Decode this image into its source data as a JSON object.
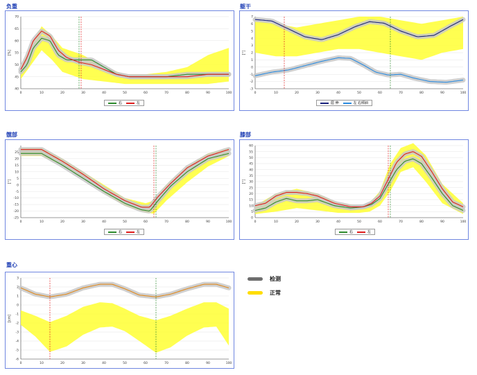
{
  "colors": {
    "band": "#ffff33",
    "measured": "#c8c8c8",
    "right": "#2e8b2e",
    "left": "#e01e1e",
    "trunk_main": "#1a237e",
    "trunk_side": "#2b8ce0",
    "cog": "#e08a1e",
    "frame": "#6f86e0",
    "title": "#1f3fb5"
  },
  "legend": {
    "measured": "检测",
    "normal": "正常"
  },
  "charts": [
    {
      "id": "load",
      "title": "负重",
      "ylabel": "[%]",
      "ylim": [
        40,
        70
      ],
      "yticks": [
        40,
        45,
        50,
        55,
        60,
        65,
        70
      ],
      "xlim": [
        0,
        100
      ],
      "xticks": [
        0,
        10,
        20,
        30,
        40,
        50,
        60,
        70,
        80,
        90,
        100
      ],
      "legend": [
        "右",
        "左"
      ],
      "markers": [
        {
          "x": 28,
          "color": "#2e8b2e"
        },
        {
          "x": 29,
          "color": "#e01e1e"
        }
      ],
      "band": {
        "x": [
          0,
          5,
          10,
          15,
          20,
          30,
          40,
          50,
          60,
          70,
          80,
          90,
          100
        ],
        "upper": [
          49,
          58,
          66,
          62,
          57,
          54,
          49,
          46,
          46,
          47,
          49,
          54,
          57
        ],
        "lower": [
          44,
          50,
          56,
          52,
          47,
          44,
          43,
          42,
          42,
          42,
          42,
          42,
          43
        ]
      },
      "series": [
        {
          "name": "右",
          "color": "#2e8b2e",
          "grey": 4,
          "x": [
            0,
            3,
            6,
            10,
            14,
            18,
            22,
            28,
            34,
            40,
            46,
            52,
            60,
            70,
            80,
            90,
            100
          ],
          "y": [
            47,
            50,
            57,
            61,
            60,
            54,
            52,
            52,
            52,
            49,
            46,
            45,
            45,
            45,
            46,
            46,
            46
          ]
        },
        {
          "name": "左",
          "color": "#e01e1e",
          "grey": 0,
          "x": [
            0,
            3,
            6,
            10,
            14,
            18,
            22,
            28,
            34,
            40,
            46,
            52,
            60,
            70,
            80,
            90,
            100
          ],
          "y": [
            48,
            53,
            60,
            64,
            62,
            56,
            53,
            51,
            50,
            48,
            46,
            45,
            45,
            45,
            45,
            46,
            46
          ]
        }
      ]
    },
    {
      "id": "trunk",
      "title": "躯干",
      "ylabel": "[°]",
      "ylim": [
        -3,
        7
      ],
      "yticks": [
        -3,
        -2,
        -1,
        0,
        1,
        2,
        3,
        4,
        5,
        6,
        7
      ],
      "xlim": [
        0,
        100
      ],
      "xticks": [
        0,
        10,
        20,
        30,
        40,
        50,
        60,
        70,
        80,
        90,
        100
      ],
      "legend": [
        "屈 伸",
        "左 右倾斜"
      ],
      "markers": [
        {
          "x": 14,
          "color": "#e01e1e"
        },
        {
          "x": 65,
          "color": "#2e8b2e"
        }
      ],
      "band": {
        "x": [
          0,
          10,
          20,
          30,
          40,
          50,
          60,
          70,
          80,
          90,
          100
        ],
        "upper": [
          6.5,
          6,
          5.5,
          6,
          6.5,
          7,
          7,
          6.5,
          6,
          6.5,
          7
        ],
        "lower": [
          2,
          1.5,
          1.5,
          2,
          2.5,
          2.5,
          2,
          1.5,
          1,
          2,
          2.5
        ]
      },
      "series": [
        {
          "name": "屈 伸",
          "color": "#1a237e",
          "grey": 1,
          "x": [
            0,
            8,
            16,
            24,
            32,
            40,
            48,
            55,
            62,
            70,
            78,
            86,
            94,
            100
          ],
          "y": [
            6.6,
            6.4,
            5.3,
            4.2,
            3.8,
            4.5,
            5.6,
            6.3,
            6.1,
            5.0,
            4.2,
            4.4,
            5.7,
            6.6
          ]
        },
        {
          "name": "左 右倾斜",
          "color": "#2b8ce0",
          "grey": 1,
          "x": [
            0,
            8,
            16,
            24,
            32,
            40,
            46,
            52,
            58,
            64,
            70,
            76,
            84,
            92,
            100
          ],
          "y": [
            -1.2,
            -0.7,
            -0.4,
            0.2,
            0.8,
            1.3,
            1.2,
            0.3,
            -0.7,
            -1.1,
            -1.0,
            -1.5,
            -2.0,
            -2.1,
            -1.8
          ]
        }
      ]
    },
    {
      "id": "hip",
      "title": "髋部",
      "ylabel": "[°]",
      "ylim": [
        -25,
        30
      ],
      "yticks": [
        -25,
        -20,
        -15,
        -10,
        -5,
        0,
        5,
        10,
        15,
        20,
        25
      ],
      "xlim": [
        0,
        100
      ],
      "xticks": [
        0,
        10,
        20,
        30,
        40,
        50,
        60,
        70,
        80,
        90,
        100
      ],
      "legend": [
        "右",
        "左"
      ],
      "markers": [
        {
          "x": 64,
          "color": "#e01e1e"
        },
        {
          "x": 65,
          "color": "#2e8b2e"
        }
      ],
      "band": {
        "x": [
          0,
          10,
          20,
          30,
          40,
          50,
          60,
          64,
          70,
          80,
          90,
          100
        ],
        "upper": [
          28,
          28,
          20,
          10,
          0,
          -10,
          -14,
          -12,
          0,
          14,
          24,
          28
        ],
        "lower": [
          22,
          22,
          15,
          5,
          -6,
          -16,
          -21,
          -22,
          -12,
          2,
          14,
          22
        ]
      },
      "series": [
        {
          "name": "右",
          "color": "#2e8b2e",
          "grey": 4,
          "x": [
            0,
            10,
            20,
            30,
            40,
            50,
            58,
            62,
            66,
            72,
            80,
            90,
            100
          ],
          "y": [
            24,
            24,
            15,
            5,
            -5,
            -14,
            -19,
            -20,
            -12,
            -1,
            10,
            20,
            24
          ]
        },
        {
          "name": "左",
          "color": "#e01e1e",
          "grey": 0,
          "x": [
            0,
            10,
            20,
            30,
            40,
            50,
            58,
            62,
            66,
            72,
            80,
            90,
            100
          ],
          "y": [
            27,
            27,
            18,
            8,
            -3,
            -12,
            -17,
            -17,
            -9,
            1,
            13,
            22,
            27
          ]
        }
      ]
    },
    {
      "id": "knee",
      "title": "膝部",
      "ylabel": "[°]",
      "ylim": [
        0,
        60
      ],
      "yticks": [
        0,
        5,
        10,
        15,
        20,
        25,
        30,
        35,
        40,
        45,
        50,
        55,
        60
      ],
      "xlim": [
        0,
        100
      ],
      "xticks": [
        0,
        10,
        20,
        30,
        40,
        50,
        60,
        70,
        80,
        90,
        100
      ],
      "legend": [
        "右",
        "左"
      ],
      "markers": [
        {
          "x": 64,
          "color": "#e01e1e"
        },
        {
          "x": 65,
          "color": "#2e8b2e"
        }
      ],
      "band": {
        "x": [
          0,
          10,
          20,
          30,
          40,
          50,
          55,
          60,
          65,
          70,
          76,
          82,
          90,
          100
        ],
        "upper": [
          10,
          20,
          24,
          20,
          12,
          10,
          12,
          22,
          45,
          58,
          62,
          52,
          28,
          12
        ],
        "lower": [
          3,
          5,
          8,
          6,
          4,
          4,
          5,
          10,
          22,
          38,
          42,
          30,
          12,
          3
        ]
      },
      "series": [
        {
          "name": "右",
          "color": "#2e8b2e",
          "grey": 4,
          "x": [
            0,
            5,
            10,
            15,
            20,
            25,
            30,
            38,
            46,
            52,
            56,
            60,
            64,
            68,
            72,
            76,
            80,
            85,
            90,
            95,
            100
          ],
          "y": [
            6,
            8,
            13,
            16,
            14,
            14,
            15,
            10,
            8,
            9,
            11,
            16,
            28,
            40,
            47,
            49,
            45,
            33,
            20,
            10,
            6
          ]
        },
        {
          "name": "左",
          "color": "#e01e1e",
          "grey": 0,
          "x": [
            0,
            5,
            10,
            15,
            20,
            25,
            30,
            38,
            46,
            52,
            56,
            60,
            64,
            68,
            72,
            76,
            80,
            85,
            90,
            95,
            100
          ],
          "y": [
            10,
            12,
            18,
            21,
            21,
            20,
            18,
            12,
            9,
            9,
            12,
            18,
            32,
            46,
            53,
            55,
            51,
            38,
            24,
            13,
            9
          ]
        }
      ]
    },
    {
      "id": "cog",
      "title": "重心",
      "ylabel": "[cm]",
      "ylim": [
        -6,
        3
      ],
      "yticks": [
        -6,
        -5,
        -4,
        -3,
        -2,
        -1,
        0,
        1,
        2,
        3
      ],
      "xlim": [
        0,
        100
      ],
      "xticks": [
        0,
        10,
        20,
        30,
        40,
        50,
        60,
        70,
        80,
        90,
        100
      ],
      "legend": [],
      "markers": [
        {
          "x": 14,
          "color": "#e01e1e"
        },
        {
          "x": 65,
          "color": "#2e8b2e"
        }
      ],
      "band": {
        "x": [
          0,
          7,
          14,
          22,
          30,
          38,
          44,
          50,
          57,
          65,
          72,
          80,
          88,
          94,
          100
        ],
        "upper": [
          -0.6,
          -1.2,
          -1.9,
          -1.2,
          -0.2,
          0.3,
          0.2,
          -0.4,
          -1.2,
          -1.7,
          -1.2,
          -0.4,
          0.3,
          0.3,
          -0.4
        ],
        "lower": [
          -2.2,
          -3.5,
          -5.2,
          -4.6,
          -3.3,
          -2.5,
          -2.4,
          -2.9,
          -4.0,
          -5.3,
          -4.7,
          -3.4,
          -2.5,
          -2.4,
          -4.5
        ]
      },
      "series": [
        {
          "name": "重心",
          "color": "#e08a1e",
          "grey": 1,
          "x": [
            0,
            7,
            14,
            22,
            30,
            38,
            44,
            50,
            57,
            65,
            72,
            80,
            88,
            94,
            100
          ],
          "y": [
            1.9,
            1.2,
            0.9,
            1.2,
            1.9,
            2.3,
            2.3,
            1.8,
            1.1,
            0.9,
            1.2,
            1.8,
            2.3,
            2.3,
            1.9
          ]
        }
      ]
    }
  ]
}
